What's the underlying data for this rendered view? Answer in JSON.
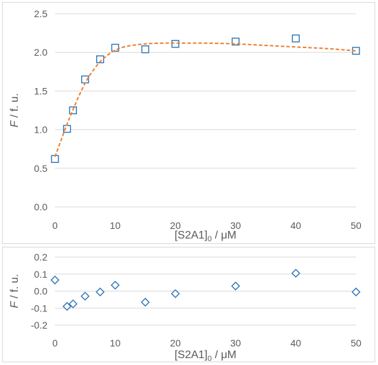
{
  "colors": {
    "marker": "#2e75b6",
    "fit": "#ed7d31",
    "grid": "#d9d9d9",
    "text": "#595959",
    "border": "#d9d9d9"
  },
  "chart_data": [
    {
      "type": "scatter",
      "title": "",
      "xlabel": {
        "main": "[S2A1]",
        "sub": "0",
        "unit": " / μM"
      },
      "ylabel": {
        "var": "F",
        "unit": " / f. u."
      },
      "xlim": [
        0,
        50
      ],
      "ylim": [
        0,
        2.5
      ],
      "xticks": [
        0,
        10,
        20,
        30,
        40,
        50
      ],
      "xtick_labels": [
        "0",
        "10",
        "20",
        "30",
        "40",
        "50"
      ],
      "yticks": [
        0,
        0.5,
        1.0,
        1.5,
        2.0,
        2.5
      ],
      "ytick_labels": [
        "0.0",
        "0.5",
        "1.0",
        "1.5",
        "2.0",
        "2.5"
      ],
      "grid": "horizontal",
      "legend": "none",
      "series": [
        {
          "marker": "square",
          "x": [
            0,
            2,
            3,
            5,
            7.5,
            10,
            15,
            20,
            30,
            40,
            50
          ],
          "y": [
            0.62,
            1.01,
            1.25,
            1.65,
            1.91,
            2.06,
            2.04,
            2.11,
            2.14,
            2.18,
            2.02
          ]
        },
        {
          "style": "dashed-line",
          "x": [
            0,
            1,
            2,
            3,
            4,
            5,
            6,
            7.5,
            9,
            10,
            12,
            15,
            18,
            20,
            22,
            25,
            30,
            35,
            40,
            45,
            50
          ],
          "y": [
            0.65,
            0.86,
            1.07,
            1.26,
            1.44,
            1.6,
            1.73,
            1.88,
            1.98,
            2.03,
            2.08,
            2.11,
            2.12,
            2.12,
            2.12,
            2.12,
            2.11,
            2.09,
            2.07,
            2.05,
            2.02
          ]
        }
      ]
    },
    {
      "type": "scatter",
      "title": "",
      "xlabel": {
        "main": "[S2A1]",
        "sub": "0",
        "unit": " / μM"
      },
      "ylabel": {
        "var": "F",
        "unit": " / f. u."
      },
      "xlim": [
        0,
        50
      ],
      "ylim": [
        -0.2,
        0.2
      ],
      "xticks": [
        0,
        10,
        20,
        30,
        40,
        50
      ],
      "xtick_labels": [
        "0",
        "10",
        "20",
        "30",
        "40",
        "50"
      ],
      "yticks": [
        -0.2,
        -0.1,
        0.0,
        0.1,
        0.2
      ],
      "ytick_labels": [
        "-0.2",
        "-0.1",
        "0.0",
        "0.1",
        "0.2"
      ],
      "grid": "horizontal",
      "legend": "none",
      "series": [
        {
          "marker": "diamond",
          "x": [
            0,
            2,
            3,
            5,
            7.5,
            10,
            15,
            20,
            30,
            40,
            50
          ],
          "y": [
            0.065,
            -0.09,
            -0.075,
            -0.03,
            -0.005,
            0.035,
            -0.065,
            -0.015,
            0.03,
            0.105,
            -0.005
          ]
        }
      ]
    }
  ]
}
